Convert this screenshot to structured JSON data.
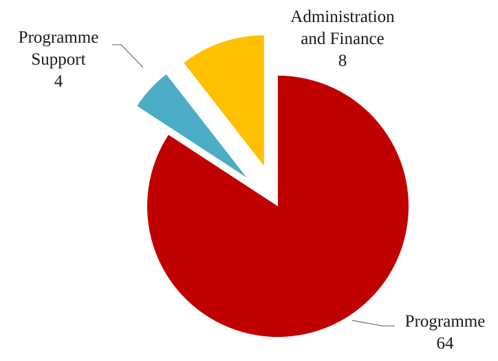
{
  "chart_data": {
    "type": "pie",
    "title": "",
    "categories": [
      "Programme",
      "Programme Support",
      "Administration and Finance"
    ],
    "values": [
      64,
      4,
      8
    ],
    "colors": [
      "#c00000",
      "#4bacc6",
      "#ffc000"
    ],
    "exploded": true,
    "labels": [
      {
        "lines": [
          "Programme",
          "64"
        ]
      },
      {
        "lines": [
          "Programme",
          "Support",
          "4"
        ]
      },
      {
        "lines": [
          "Administration",
          "and Finance",
          "8"
        ]
      }
    ]
  }
}
